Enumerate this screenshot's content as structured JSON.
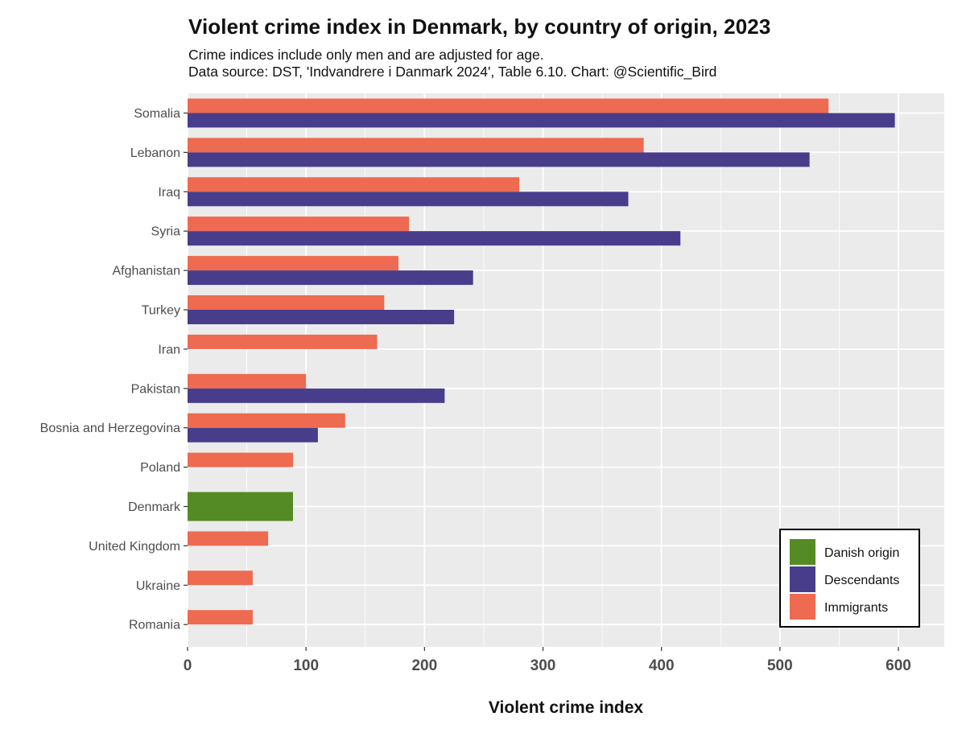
{
  "title": "Violent crime index in Denmark, by country of origin, 2023",
  "subtitle_lines": [
    "Crime indices include only men and are adjusted for age.",
    "Data source: DST, 'Indvandrere i Danmark 2024', Table 6.10. Chart: @Scientific_Bird"
  ],
  "colors": {
    "immigrants": "#EE6A50",
    "descendants": "#483D8B",
    "danish_origin": "#548B24",
    "panel_bg": "#EBEBEB",
    "grid": "#FFFFFF"
  },
  "chart_data": {
    "type": "bar",
    "orientation": "horizontal",
    "xlabel": "Violent crime index",
    "ylabel": "",
    "xlim": [
      0,
      640
    ],
    "xticks": [
      0,
      100,
      200,
      300,
      400,
      500,
      600
    ],
    "grid": true,
    "legend_position": "bottom-right",
    "categories": [
      "Somalia",
      "Lebanon",
      "Iraq",
      "Syria",
      "Afghanistan",
      "Turkey",
      "Iran",
      "Pakistan",
      "Bosnia and Herzegovina",
      "Poland",
      "Denmark",
      "United Kingdom",
      "Ukraine",
      "Romania"
    ],
    "series": [
      {
        "key": "immigrants",
        "name": "Immigrants",
        "values": [
          541,
          385,
          280,
          187,
          178,
          166,
          160,
          100,
          133,
          89,
          null,
          68,
          55,
          55
        ]
      },
      {
        "key": "descendants",
        "name": "Descendants",
        "values": [
          597,
          525,
          372,
          416,
          241,
          225,
          null,
          217,
          110,
          null,
          null,
          null,
          null,
          null
        ]
      },
      {
        "key": "danish_origin",
        "name": "Danish origin",
        "values": [
          null,
          null,
          null,
          null,
          null,
          null,
          null,
          null,
          null,
          null,
          89,
          null,
          null,
          null
        ]
      }
    ],
    "legend": [
      {
        "key": "danish_origin",
        "label": "Danish origin"
      },
      {
        "key": "descendants",
        "label": "Descendants"
      },
      {
        "key": "immigrants",
        "label": "Immigrants"
      }
    ]
  }
}
